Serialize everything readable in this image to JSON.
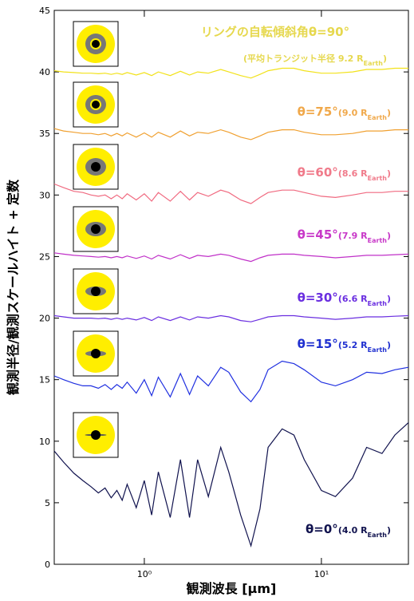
{
  "chart_data": {
    "type": "line",
    "xlabel": "観測波長 [μm]",
    "ylabel": "観測半径/観測スケールハイト + 定数",
    "xscale": "log",
    "xlim": [
      0.31,
      31
    ],
    "xticks": [
      {
        "value": 1,
        "label": "10⁰"
      },
      {
        "value": 10,
        "label": "10¹"
      }
    ],
    "ylim": [
      0,
      45
    ],
    "yticks": [
      0,
      5,
      10,
      15,
      20,
      25,
      30,
      35,
      40,
      45
    ],
    "x": [
      0.31,
      0.35,
      0.4,
      0.45,
      0.5,
      0.55,
      0.6,
      0.65,
      0.7,
      0.75,
      0.8,
      0.9,
      1.0,
      1.1,
      1.2,
      1.4,
      1.6,
      1.8,
      2.0,
      2.3,
      2.7,
      3.0,
      3.5,
      4.0,
      4.5,
      5.0,
      6.0,
      7.0,
      8.0,
      10,
      12,
      15,
      18,
      22,
      26,
      31
    ],
    "series": [
      {
        "label": "リングの自転傾斜角θ=90°",
        "note": "(平均トランジット半径 9.2 R",
        "subscript": "Earth",
        "note_end": ")",
        "color": "#f2e21a",
        "label_color": "#e6d84e",
        "values": [
          40.1,
          40.0,
          39.95,
          39.9,
          39.9,
          39.85,
          39.9,
          39.8,
          39.9,
          39.8,
          39.95,
          39.75,
          39.95,
          39.7,
          40.0,
          39.7,
          40.05,
          39.75,
          40.0,
          39.9,
          40.2,
          40.0,
          39.7,
          39.5,
          39.8,
          40.1,
          40.3,
          40.3,
          40.1,
          39.9,
          39.9,
          40.0,
          40.2,
          40.2,
          40.3,
          40.3
        ]
      },
      {
        "label": "θ=75°",
        "note": "(9.0 R",
        "subscript": "Earth",
        "note_end": ")",
        "color": "#f0a030",
        "label_color": "#f0a84a",
        "values": [
          35.4,
          35.2,
          35.1,
          35.0,
          35.0,
          34.9,
          35.0,
          34.8,
          35.0,
          34.8,
          35.05,
          34.7,
          35.05,
          34.7,
          35.1,
          34.7,
          35.2,
          34.8,
          35.1,
          35.0,
          35.3,
          35.1,
          34.7,
          34.5,
          34.8,
          35.1,
          35.3,
          35.3,
          35.1,
          34.9,
          34.9,
          35.0,
          35.2,
          35.2,
          35.3,
          35.3
        ]
      },
      {
        "label": "θ=60°",
        "note": "(8.6 R",
        "subscript": "Earth",
        "note_end": ")",
        "color": "#f06a80",
        "label_color": "#f07a8a",
        "values": [
          30.9,
          30.6,
          30.3,
          30.2,
          30.0,
          29.9,
          30.0,
          29.7,
          30.0,
          29.7,
          30.1,
          29.6,
          30.1,
          29.5,
          30.2,
          29.5,
          30.3,
          29.6,
          30.2,
          29.9,
          30.4,
          30.2,
          29.6,
          29.3,
          29.8,
          30.2,
          30.4,
          30.4,
          30.2,
          29.9,
          29.8,
          30.0,
          30.2,
          30.2,
          30.3,
          30.3
        ]
      },
      {
        "label": "θ=45°",
        "note": "(7.9 R",
        "subscript": "Earth",
        "note_end": ")",
        "color": "#c030c8",
        "label_color": "#c838c8",
        "values": [
          25.3,
          25.2,
          25.1,
          25.05,
          25.0,
          24.95,
          25.0,
          24.9,
          25.0,
          24.9,
          25.05,
          24.85,
          25.05,
          24.8,
          25.1,
          24.8,
          25.15,
          24.85,
          25.1,
          25.0,
          25.2,
          25.1,
          24.8,
          24.6,
          24.9,
          25.1,
          25.2,
          25.2,
          25.1,
          25.0,
          24.9,
          25.0,
          25.1,
          25.1,
          25.15,
          25.2
        ]
      },
      {
        "label": "θ=30°",
        "note": "(6.6 R",
        "subscript": "Earth",
        "note_end": ")",
        "color": "#6a2ee0",
        "label_color": "#6a2ee0",
        "values": [
          20.2,
          20.1,
          20.0,
          20.0,
          20.0,
          19.95,
          20.0,
          19.9,
          20.0,
          19.9,
          20.0,
          19.85,
          20.05,
          19.8,
          20.1,
          19.8,
          20.1,
          19.85,
          20.1,
          20.0,
          20.2,
          20.1,
          19.8,
          19.7,
          19.9,
          20.1,
          20.2,
          20.2,
          20.1,
          20.0,
          19.9,
          20.0,
          20.1,
          20.1,
          20.15,
          20.2
        ]
      },
      {
        "label": "θ=15°",
        "note": "(5.2 R",
        "subscript": "Earth",
        "note_end": ")",
        "color": "#2030e0",
        "label_color": "#2030d0",
        "values": [
          15.3,
          15.0,
          14.7,
          14.5,
          14.5,
          14.3,
          14.6,
          14.2,
          14.6,
          14.3,
          14.8,
          13.9,
          15.0,
          13.7,
          15.2,
          13.6,
          15.5,
          13.8,
          15.3,
          14.5,
          16.0,
          15.6,
          14.0,
          13.2,
          14.2,
          15.8,
          16.5,
          16.3,
          15.8,
          14.8,
          14.5,
          15.0,
          15.6,
          15.5,
          15.8,
          16.0
        ]
      },
      {
        "label": "θ=0°",
        "note": "(4.0 R",
        "subscript": "Earth",
        "note_end": ")",
        "color": "#10124e",
        "label_color": "#10124e",
        "values": [
          9.2,
          8.3,
          7.4,
          6.8,
          6.3,
          5.8,
          6.2,
          5.4,
          6.0,
          5.2,
          6.5,
          4.6,
          6.8,
          4.0,
          7.5,
          3.8,
          8.5,
          3.8,
          8.5,
          5.5,
          9.5,
          7.5,
          4.0,
          1.5,
          4.5,
          9.5,
          11.0,
          10.5,
          8.5,
          6.0,
          5.5,
          7.0,
          9.5,
          9.0,
          10.5,
          11.5
        ]
      }
    ]
  }
}
